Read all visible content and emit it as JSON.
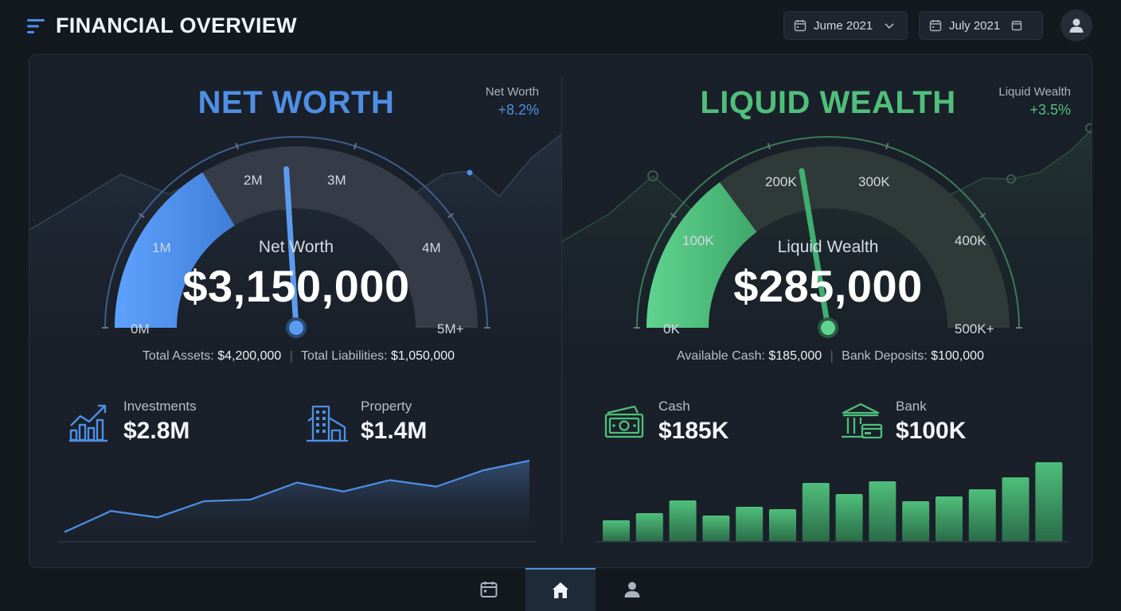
{
  "header": {
    "title": "FINANCIAL OVERVIEW",
    "date_start": "Jume 2021",
    "date_end": "July 2021"
  },
  "net_worth": {
    "title": "NET WORTH",
    "change_label": "Net Worth",
    "change_value": "+8.2%",
    "gauge_label": "Net Worth",
    "gauge_value": "$3,150,000",
    "gauge_level": 0.63,
    "ticks": [
      "0M",
      "1M",
      "2M",
      "3M",
      "4M",
      "5M+"
    ],
    "assets_label": "Total Assets:",
    "assets_value": "$4,200,000",
    "liabilities_label": "Total Liabilities:",
    "liabilities_value": "$1,050,000",
    "stat1_label": "Investments",
    "stat1_value": "$2.8M",
    "stat2_label": "Property",
    "stat2_value": "$1.4M",
    "trend": [
      12,
      38,
      30,
      50,
      52,
      73,
      62,
      76,
      68,
      88,
      100
    ],
    "accent": "#4e8fe6"
  },
  "liquid_wealth": {
    "title": "LIQUID WEALTH",
    "change_label": "Liquid Wealth",
    "change_value": "+3.5%",
    "gauge_label": "Liquid Wealth",
    "gauge_value": "$285,000",
    "gauge_level": 0.57,
    "ticks": [
      "0K",
      "100K",
      "200K",
      "300K",
      "400K",
      "500K+"
    ],
    "cash_label": "Available Cash:",
    "cash_value": "$185,000",
    "deposits_label": "Bank Deposits:",
    "deposits_value": "$100,000",
    "stat1_label": "Cash",
    "stat1_value": "$185K",
    "stat2_label": "Bank",
    "stat2_value": "$100K",
    "bars": [
      27,
      36,
      52,
      33,
      44,
      41,
      74,
      60,
      76,
      51,
      57,
      66,
      81,
      100
    ],
    "accent": "#4fbf7b"
  },
  "icons": {
    "menu": "menu-icon",
    "calendar": "calendar-icon",
    "chevron": "chevron-down-icon",
    "user": "user-icon",
    "investments": "chart-up-icon",
    "property": "building-icon",
    "cash": "money-icon",
    "bank": "bank-icon",
    "home": "home-icon"
  }
}
